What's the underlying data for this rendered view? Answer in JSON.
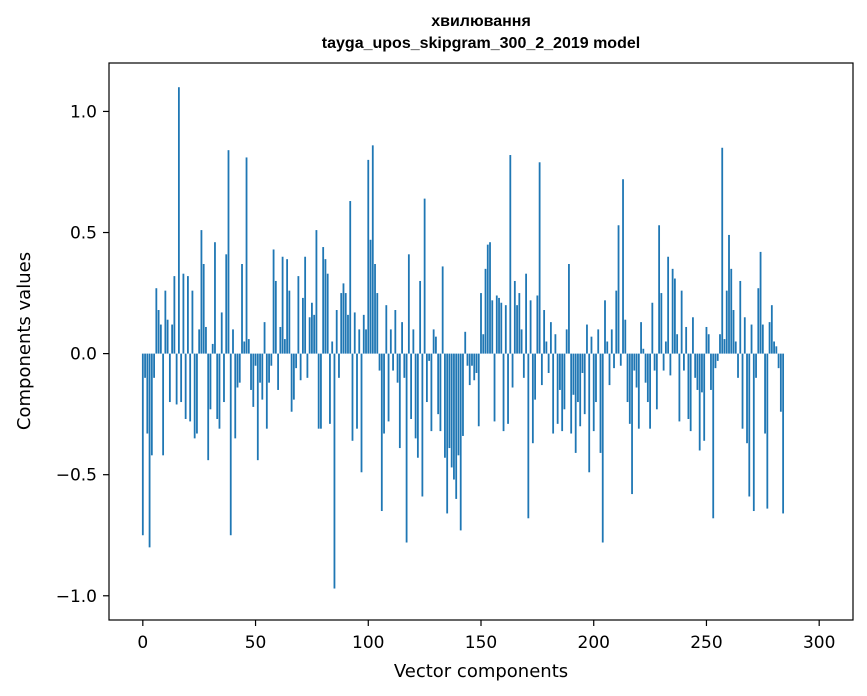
{
  "chart_data": {
    "type": "bar",
    "title": "хвилювання",
    "subtitle": "tayga_upos_skipgram_300_2_2019 model",
    "xlabel": "Vector components",
    "ylabel": "Components values",
    "xlim": [
      -15,
      315
    ],
    "ylim": [
      -1.1,
      1.2
    ],
    "xticks": [
      0,
      50,
      100,
      150,
      200,
      250,
      300
    ],
    "xtick_labels": [
      "0",
      "50",
      "100",
      "150",
      "200",
      "250",
      "300"
    ],
    "yticks": [
      -1.0,
      -0.5,
      0.0,
      0.5,
      1.0
    ],
    "ytick_labels": [
      "−1.0",
      "−0.5",
      "0.0",
      "0.5",
      "1.0"
    ],
    "bar_color": "#1f77b4",
    "grid": false,
    "legend": "none",
    "values": [
      -0.75,
      -0.1,
      -0.33,
      -0.8,
      -0.42,
      -0.1,
      0.27,
      0.18,
      0.12,
      -0.42,
      0.26,
      0.14,
      -0.2,
      0.12,
      0.32,
      -0.21,
      1.1,
      -0.2,
      0.33,
      -0.27,
      0.32,
      -0.28,
      0.26,
      -0.35,
      -0.33,
      0.1,
      0.51,
      0.37,
      0.11,
      -0.44,
      -0.23,
      0.04,
      0.46,
      -0.27,
      -0.31,
      0.17,
      -0.2,
      0.41,
      0.84,
      -0.75,
      0.1,
      -0.35,
      -0.14,
      -0.12,
      0.37,
      0.05,
      0.81,
      0.06,
      -0.15,
      -0.22,
      -0.05,
      -0.44,
      -0.12,
      -0.19,
      0.13,
      -0.31,
      -0.12,
      -0.05,
      0.43,
      0.3,
      -0.15,
      0.11,
      0.4,
      0.06,
      0.39,
      0.26,
      -0.24,
      -0.19,
      -0.06,
      0.32,
      -0.11,
      0.23,
      0.4,
      -0.1,
      0.15,
      0.21,
      0.16,
      0.51,
      -0.31,
      -0.31,
      0.44,
      0.39,
      0.33,
      -0.29,
      0.05,
      -0.97,
      0.18,
      -0.1,
      0.25,
      0.29,
      0.25,
      0.16,
      0.63,
      -0.36,
      0.17,
      -0.31,
      0.1,
      -0.49,
      0.16,
      0.1,
      0.8,
      0.47,
      0.86,
      0.37,
      0.25,
      -0.07,
      -0.65,
      -0.33,
      0.2,
      -0.28,
      0.1,
      -0.07,
      0.18,
      -0.12,
      -0.39,
      0.13,
      -0.1,
      -0.78,
      0.41,
      -0.27,
      0.1,
      -0.35,
      -0.43,
      0.3,
      -0.59,
      0.64,
      -0.2,
      -0.03,
      -0.32,
      0.1,
      0.07,
      -0.25,
      -0.32,
      0.36,
      -0.43,
      -0.66,
      -0.39,
      -0.47,
      -0.52,
      -0.6,
      -0.42,
      -0.73,
      -0.34,
      0.09,
      -0.05,
      -0.13,
      -0.05,
      -0.11,
      -0.08,
      -0.3,
      0.25,
      0.08,
      0.35,
      0.45,
      0.46,
      0.22,
      -0.28,
      0.24,
      0.23,
      0.21,
      -0.32,
      0.2,
      -0.29,
      0.82,
      -0.14,
      0.3,
      0.2,
      0.25,
      0.1,
      -0.1,
      0.33,
      -0.68,
      0.22,
      -0.37,
      -0.19,
      0.24,
      0.79,
      -0.13,
      0.18,
      0.05,
      -0.08,
      0.13,
      -0.33,
      0.08,
      -0.29,
      -0.15,
      -0.32,
      -0.23,
      0.1,
      0.37,
      -0.33,
      -0.17,
      -0.41,
      -0.2,
      -0.3,
      -0.08,
      -0.25,
      0.12,
      -0.49,
      0.07,
      -0.32,
      -0.2,
      0.1,
      -0.41,
      -0.78,
      0.22,
      0.05,
      -0.13,
      0.1,
      -0.06,
      0.26,
      0.53,
      -0.05,
      0.72,
      0.14,
      -0.2,
      -0.29,
      -0.58,
      -0.07,
      -0.14,
      -0.31,
      0.13,
      0.02,
      -0.12,
      -0.2,
      -0.31,
      0.21,
      -0.07,
      -0.23,
      0.53,
      0.25,
      -0.07,
      0.05,
      0.4,
      -0.09,
      0.35,
      0.31,
      0.08,
      -0.28,
      0.26,
      -0.07,
      0.11,
      -0.27,
      -0.32,
      0.15,
      -0.1,
      -0.15,
      -0.4,
      -0.16,
      -0.36,
      0.11,
      0.08,
      -0.15,
      -0.68,
      -0.06,
      -0.03,
      0.08,
      0.85,
      0.06,
      0.26,
      0.49,
      0.35,
      0.18,
      0.05,
      -0.1,
      0.3,
      -0.31,
      0.15,
      -0.37,
      -0.59,
      0.12,
      -0.65,
      -0.1,
      0.27,
      0.42,
      0.12,
      -0.33,
      -0.64,
      0.13,
      0.2,
      0.05,
      0.03,
      -0.06,
      -0.24,
      -0.66
    ],
    "values_note": ""
  }
}
